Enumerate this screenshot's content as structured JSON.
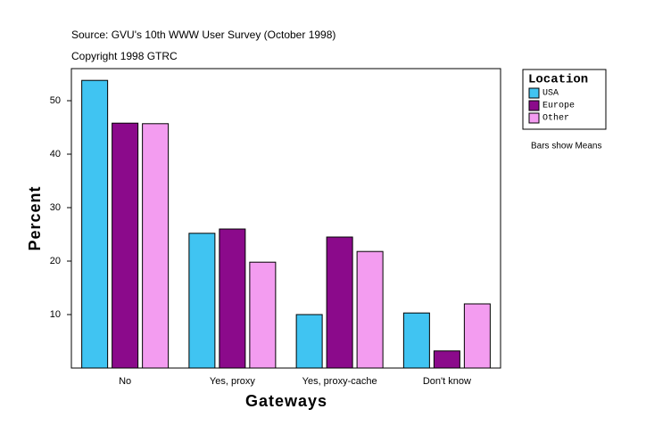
{
  "chart_data": {
    "type": "bar",
    "source": "Source: GVU's 10th WWW User Survey (October 1998)",
    "copyright": "Copyright 1998 GTRC",
    "note": "Bars show Means",
    "xlabel": "Gateways",
    "ylabel": "Percent",
    "legend_title": "Location",
    "legend_position": "right",
    "categories": [
      "No",
      "Yes, proxy",
      "Yes, proxy-cache",
      "Don't know"
    ],
    "series": [
      {
        "name": "USA",
        "color": "#40c4f2",
        "values": [
          53.8,
          25.2,
          10,
          10.3
        ]
      },
      {
        "name": "Europe",
        "color": "#8b0a8b",
        "values": [
          45.8,
          26,
          24.5,
          3.2
        ]
      },
      {
        "name": "Other",
        "color": "#f39cf0",
        "values": [
          45.7,
          19.8,
          21.8,
          12
        ]
      }
    ],
    "ylim": [
      0,
      56
    ],
    "yticks": [
      10,
      20,
      30,
      40,
      50
    ],
    "grid": false
  }
}
